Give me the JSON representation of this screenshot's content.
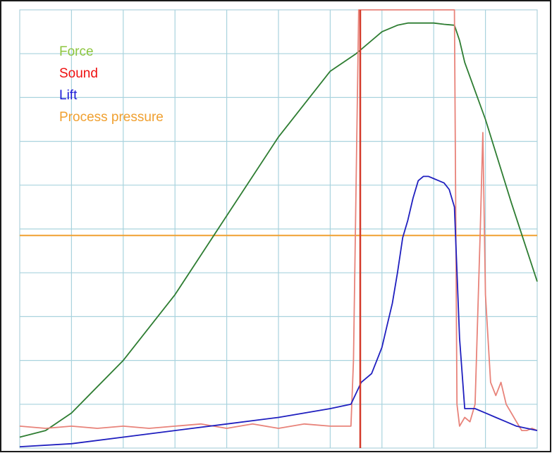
{
  "chart_data": {
    "type": "line",
    "title": "",
    "xlabel": "",
    "ylabel": "",
    "grid": true,
    "legend": "top-left",
    "xlim": [
      0,
      100
    ],
    "ylim": [
      0,
      100
    ],
    "series": [
      {
        "name": "Force",
        "color": "#2e7d32",
        "label_color": "#8dc63f",
        "x": [
          0,
          5,
          10,
          20,
          30,
          40,
          50,
          60,
          65,
          70,
          73,
          75,
          78,
          80,
          82,
          84,
          85,
          86,
          90,
          95,
          100
        ],
        "y": [
          2.5,
          4,
          8,
          20,
          35,
          53,
          71,
          86,
          90,
          95,
          96.5,
          97,
          97,
          97,
          96.7,
          96.5,
          93,
          88,
          75,
          56,
          38
        ]
      },
      {
        "name": "Sound",
        "color": "#e8837a",
        "label_color": "#ee1111",
        "x": [
          0,
          5,
          10,
          15,
          20,
          25,
          30,
          35,
          40,
          45,
          50,
          55,
          60,
          64,
          64.5,
          65.5,
          67,
          68,
          69,
          70,
          72,
          75,
          78,
          80,
          82,
          83,
          84,
          84.5,
          85,
          86,
          87,
          88,
          89,
          89.5,
          90,
          91,
          92,
          93,
          94,
          95,
          96,
          97,
          98,
          99,
          100
        ],
        "y": [
          5,
          4.5,
          5,
          4.5,
          5,
          4.5,
          5,
          5.5,
          4.5,
          5.5,
          4.5,
          5.5,
          5,
          5,
          20,
          100,
          100,
          100,
          100,
          100,
          100,
          100,
          100,
          100,
          100,
          100,
          100,
          10,
          5,
          7,
          6,
          10,
          50,
          72,
          35,
          15,
          12,
          15,
          10,
          8,
          6,
          4,
          4,
          4.5,
          4
        ]
      },
      {
        "name": "Lift",
        "color": "#1f1fbf",
        "label_color": "#1a1ad6",
        "x": [
          0,
          10,
          20,
          30,
          40,
          50,
          55,
          60,
          64,
          66,
          68,
          69,
          70,
          71,
          72,
          73,
          74,
          75,
          76,
          77,
          78,
          79,
          80,
          81,
          82,
          83,
          84,
          85,
          86,
          88,
          90,
          92,
          94,
          96,
          98,
          100
        ],
        "y": [
          0.3,
          1,
          2.5,
          4,
          5.5,
          7,
          8,
          9,
          10,
          15,
          17,
          20,
          23,
          28,
          33,
          40,
          48,
          52,
          57,
          61,
          62,
          62,
          61.5,
          61,
          60.5,
          59,
          55,
          25,
          9,
          9,
          8,
          7,
          6,
          5,
          4.5,
          4
        ]
      },
      {
        "name": "Process pressure",
        "color": "#f0a030",
        "label_color": "#f0a030",
        "x": [
          0,
          100
        ],
        "y": [
          48.5,
          48.5
        ]
      }
    ]
  }
}
